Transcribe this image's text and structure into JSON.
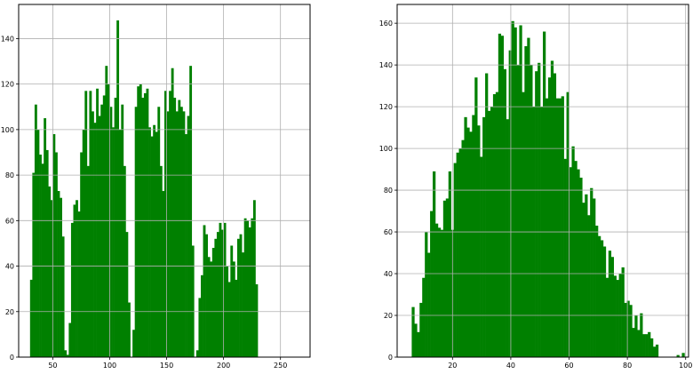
{
  "chart_data": [
    {
      "type": "bar",
      "title": "",
      "xlabel": "",
      "ylabel": "",
      "color": "#008000",
      "grid": true,
      "xlim": [
        20,
        276
      ],
      "ylim": [
        0,
        155
      ],
      "xticks": [
        50,
        100,
        150,
        200,
        250
      ],
      "yticks": [
        0,
        20,
        40,
        60,
        80,
        100,
        120,
        140
      ],
      "bin_start": 30,
      "bin_width": 2,
      "values": [
        34,
        81,
        111,
        100,
        89,
        85,
        105,
        91,
        75,
        69,
        98,
        90,
        73,
        70,
        53,
        3,
        1,
        15,
        59,
        67,
        69,
        64,
        90,
        100,
        117,
        84,
        117,
        108,
        103,
        118,
        106,
        111,
        115,
        128,
        120,
        110,
        101,
        114,
        148,
        100,
        111,
        84,
        55,
        24,
        0,
        12,
        110,
        119,
        120,
        114,
        116,
        118,
        101,
        97,
        102,
        99,
        110,
        84,
        73,
        117,
        108,
        117,
        127,
        114,
        108,
        113,
        110,
        108,
        98,
        106,
        128,
        49,
        0,
        3,
        26,
        36,
        58,
        54,
        44,
        42,
        48,
        52,
        55,
        59,
        56,
        59,
        40,
        33,
        49,
        42,
        34,
        52,
        54,
        46,
        61,
        60,
        57,
        61,
        69,
        32
      ]
    },
    {
      "type": "bar",
      "title": "",
      "xlabel": "",
      "ylabel": "",
      "color": "#008000",
      "grid": true,
      "xlim": [
        1,
        101
      ],
      "ylim": [
        0,
        169
      ],
      "xticks": [
        20,
        40,
        60,
        80,
        100
      ],
      "yticks": [
        0,
        20,
        40,
        60,
        80,
        100,
        120,
        140,
        160
      ],
      "bin_start": 6,
      "bin_width": 0.9,
      "values": [
        24,
        16,
        12,
        26,
        38,
        60,
        50,
        70,
        89,
        64,
        62,
        61,
        75,
        76,
        89,
        61,
        93,
        98,
        100,
        104,
        115,
        110,
        108,
        116,
        134,
        111,
        96,
        115,
        136,
        118,
        120,
        126,
        127,
        155,
        154,
        138,
        114,
        147,
        161,
        158,
        140,
        159,
        127,
        149,
        153,
        140,
        120,
        137,
        141,
        120,
        156,
        124,
        134,
        142,
        136,
        124,
        124,
        125,
        95,
        127,
        91,
        101,
        94,
        90,
        86,
        74,
        78,
        68,
        81,
        76,
        63,
        58,
        56,
        53,
        38,
        51,
        48,
        39,
        37,
        40,
        43,
        26,
        27,
        25,
        14,
        20,
        13,
        21,
        11,
        11,
        12,
        9,
        5,
        6,
        0,
        0,
        0,
        0,
        0,
        0,
        0,
        1,
        0,
        2
      ]
    }
  ]
}
